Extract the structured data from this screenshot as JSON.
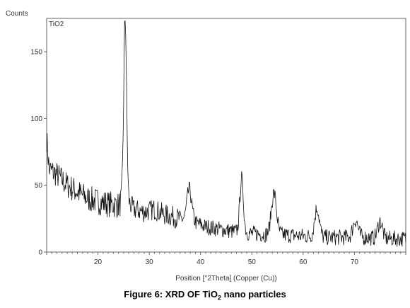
{
  "chart_data": {
    "type": "line",
    "xlabel": "Position [°2Theta] (Copper (Cu))",
    "ylabel": "Counts",
    "series_label": "TiO2",
    "xlim": [
      10,
      80
    ],
    "ylim": [
      0,
      175
    ],
    "x_ticks": [
      20,
      30,
      40,
      50,
      60,
      70
    ],
    "y_ticks": [
      0,
      50,
      100,
      150
    ],
    "grid": false,
    "line_color": "#111111",
    "peaks": [
      {
        "x": 25.3,
        "y": 175
      },
      {
        "x": 37.8,
        "y": 47
      },
      {
        "x": 48.0,
        "y": 55
      },
      {
        "x": 54.3,
        "y": 44
      },
      {
        "x": 62.7,
        "y": 33
      },
      {
        "x": 70.2,
        "y": 24
      },
      {
        "x": 75.0,
        "y": 23
      }
    ],
    "background": [
      {
        "x": 10.0,
        "y": 85
      },
      {
        "x": 10.5,
        "y": 62
      },
      {
        "x": 12,
        "y": 58
      },
      {
        "x": 14,
        "y": 50
      },
      {
        "x": 16,
        "y": 45
      },
      {
        "x": 18,
        "y": 40
      },
      {
        "x": 20,
        "y": 38
      },
      {
        "x": 22,
        "y": 36
      },
      {
        "x": 24,
        "y": 35
      },
      {
        "x": 25.3,
        "y": 40
      },
      {
        "x": 27,
        "y": 32
      },
      {
        "x": 29,
        "y": 30
      },
      {
        "x": 31,
        "y": 32
      },
      {
        "x": 33,
        "y": 28
      },
      {
        "x": 35,
        "y": 26
      },
      {
        "x": 37,
        "y": 24
      },
      {
        "x": 39,
        "y": 22
      },
      {
        "x": 41,
        "y": 19
      },
      {
        "x": 44,
        "y": 17
      },
      {
        "x": 47,
        "y": 15
      },
      {
        "x": 50,
        "y": 14
      },
      {
        "x": 53,
        "y": 13
      },
      {
        "x": 56,
        "y": 13
      },
      {
        "x": 60,
        "y": 12
      },
      {
        "x": 64,
        "y": 11
      },
      {
        "x": 68,
        "y": 11
      },
      {
        "x": 72,
        "y": 11
      },
      {
        "x": 76,
        "y": 10
      },
      {
        "x": 80,
        "y": 10
      }
    ]
  },
  "caption": {
    "prefix": "Figure 6: XRD OF TiO",
    "subscript": "2",
    "suffix": " nano particles"
  }
}
